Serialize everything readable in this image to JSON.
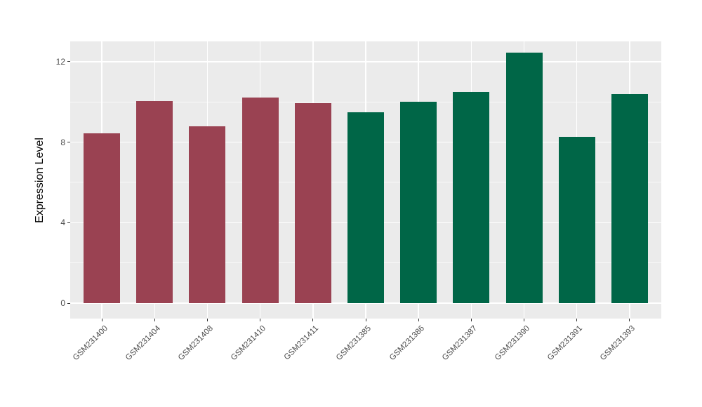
{
  "chart_data": {
    "type": "bar",
    "title": "",
    "xlabel": "",
    "ylabel": "Expression Level",
    "categories": [
      "GSM231400",
      "GSM231404",
      "GSM231408",
      "GSM231410",
      "GSM231411",
      "GSM231385",
      "GSM231386",
      "GSM231387",
      "GSM231390",
      "GSM231391",
      "GSM231393"
    ],
    "values": [
      8.45,
      10.05,
      8.8,
      10.2,
      9.95,
      9.5,
      10.0,
      10.5,
      12.45,
      8.25,
      10.4
    ],
    "bar_colors": [
      "#9A4252",
      "#9A4252",
      "#9A4252",
      "#9A4252",
      "#9A4252",
      "#006647",
      "#006647",
      "#006647",
      "#006647",
      "#006647",
      "#006647"
    ],
    "group_colors": {
      "group1": "#9A4252",
      "group2": "#006647"
    },
    "yticks": [
      0,
      4,
      8,
      12
    ],
    "yticks_minor": [
      2,
      6,
      10
    ],
    "ylim": [
      -0.75,
      13.0
    ],
    "x_tick_rotation": 45,
    "grid": true,
    "legend": false,
    "panel_bg": "#EBEBEB",
    "gridline_color": "#FFFFFF",
    "axis_text_color": "#4D4D4D",
    "axis_title_color": "#000000"
  }
}
